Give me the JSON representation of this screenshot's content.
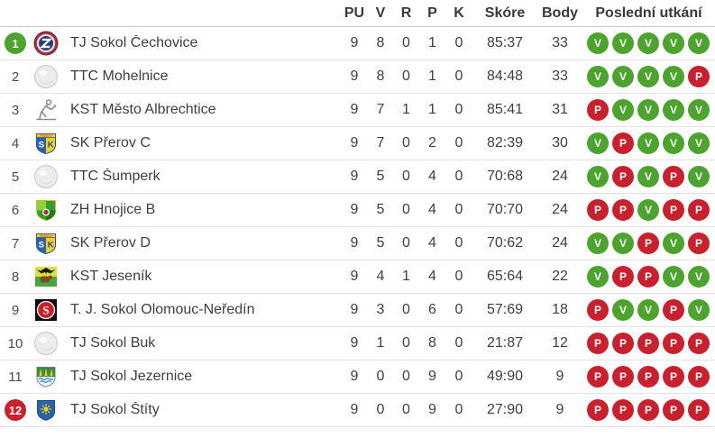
{
  "table": {
    "columns": {
      "pu": "PU",
      "v": "V",
      "r": "R",
      "p": "P",
      "k": "K",
      "skore": "Skóre",
      "body": "Body",
      "last": "Poslední utkání"
    },
    "result_colors": {
      "V": "#4ca32d",
      "P": "#c8202d"
    },
    "rank_badge_colors": {
      "green": "#4ca32d",
      "red": "#c8202d"
    },
    "rows": [
      {
        "rank": "1",
        "rank_badge": "green",
        "logo": "cechovice-club-logo",
        "team": "TJ Sokol Čechovice",
        "pu": "9",
        "v": "8",
        "r": "0",
        "p": "1",
        "k": "0",
        "skore": "85:37",
        "body": "33",
        "last": [
          "V",
          "V",
          "V",
          "V",
          "V"
        ]
      },
      {
        "rank": "2",
        "rank_badge": "none",
        "logo": "table-tennis-ball-logo",
        "team": "TTC Mohelnice",
        "pu": "9",
        "v": "8",
        "r": "0",
        "p": "1",
        "k": "0",
        "skore": "84:48",
        "body": "33",
        "last": [
          "V",
          "V",
          "V",
          "V",
          "P"
        ]
      },
      {
        "rank": "3",
        "rank_badge": "none",
        "logo": "player-silhouette-logo",
        "team": "KST Město Albrechtice",
        "pu": "9",
        "v": "7",
        "r": "1",
        "p": "1",
        "k": "0",
        "skore": "85:41",
        "body": "31",
        "last": [
          "P",
          "V",
          "V",
          "V",
          "V"
        ]
      },
      {
        "rank": "4",
        "rank_badge": "none",
        "logo": "prerov-shield-logo",
        "team": "SK Přerov C",
        "pu": "9",
        "v": "7",
        "r": "0",
        "p": "2",
        "k": "0",
        "skore": "82:39",
        "body": "30",
        "last": [
          "V",
          "P",
          "V",
          "V",
          "V"
        ]
      },
      {
        "rank": "5",
        "rank_badge": "none",
        "logo": "table-tennis-ball-logo",
        "team": "TTC Šumperk",
        "pu": "9",
        "v": "5",
        "r": "0",
        "p": "4",
        "k": "0",
        "skore": "70:68",
        "body": "24",
        "last": [
          "V",
          "P",
          "V",
          "P",
          "V"
        ]
      },
      {
        "rank": "6",
        "rank_badge": "none",
        "logo": "hnojice-shield-logo",
        "team": "ZH Hnojice B",
        "pu": "9",
        "v": "5",
        "r": "0",
        "p": "4",
        "k": "0",
        "skore": "70:70",
        "body": "24",
        "last": [
          "P",
          "P",
          "V",
          "P",
          "P"
        ]
      },
      {
        "rank": "7",
        "rank_badge": "none",
        "logo": "prerov-shield-logo",
        "team": "SK Přerov D",
        "pu": "9",
        "v": "5",
        "r": "0",
        "p": "4",
        "k": "0",
        "skore": "70:62",
        "body": "24",
        "last": [
          "V",
          "V",
          "P",
          "V",
          "P"
        ]
      },
      {
        "rank": "8",
        "rank_badge": "none",
        "logo": "jesenik-crest-logo",
        "team": "KST Jeseník",
        "pu": "9",
        "v": "4",
        "r": "1",
        "p": "4",
        "k": "0",
        "skore": "65:64",
        "body": "22",
        "last": [
          "V",
          "P",
          "P",
          "V",
          "V"
        ]
      },
      {
        "rank": "9",
        "rank_badge": "none",
        "logo": "olomouc-neredin-logo",
        "team": "T. J. Sokol Olomouc-Neředín",
        "pu": "9",
        "v": "3",
        "r": "0",
        "p": "6",
        "k": "0",
        "skore": "57:69",
        "body": "18",
        "last": [
          "P",
          "V",
          "V",
          "P",
          "V"
        ]
      },
      {
        "rank": "10",
        "rank_badge": "none",
        "logo": "table-tennis-ball-logo",
        "team": "TJ Sokol Buk",
        "pu": "9",
        "v": "1",
        "r": "0",
        "p": "8",
        "k": "0",
        "skore": "21:87",
        "body": "12",
        "last": [
          "P",
          "P",
          "P",
          "P",
          "P"
        ]
      },
      {
        "rank": "11",
        "rank_badge": "none",
        "logo": "jezernice-crest-logo",
        "team": "TJ Sokol Jezernice",
        "pu": "9",
        "v": "0",
        "r": "0",
        "p": "9",
        "k": "0",
        "skore": "49:90",
        "body": "9",
        "last": [
          "P",
          "P",
          "P",
          "P",
          "P"
        ]
      },
      {
        "rank": "12",
        "rank_badge": "red",
        "logo": "stity-crest-logo",
        "team": "TJ Sokol Štíty",
        "pu": "9",
        "v": "0",
        "r": "0",
        "p": "9",
        "k": "0",
        "skore": "27:90",
        "body": "9",
        "last": [
          "P",
          "P",
          "P",
          "P",
          "P"
        ]
      }
    ]
  }
}
